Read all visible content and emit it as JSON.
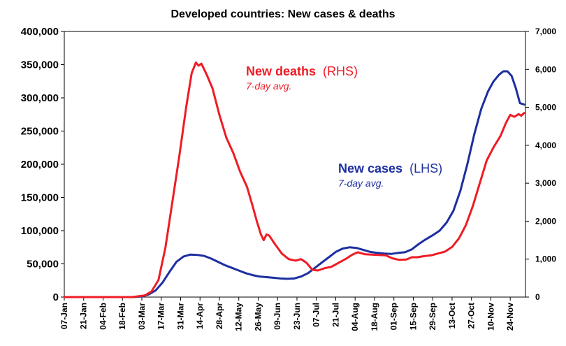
{
  "chart_data": {
    "type": "line",
    "title": "Developed countries: New cases & deaths",
    "left_axis": {
      "ylim": [
        0,
        400000
      ],
      "ticks": [
        "0",
        "50,000",
        "100,000",
        "150,000",
        "200,000",
        "250,000",
        "300,000",
        "350,000",
        "400,000"
      ]
    },
    "right_axis": {
      "ylim": [
        0,
        7000
      ],
      "ticks": [
        "0",
        "1,000",
        "2,000",
        "3,000",
        "4,000",
        "5,000",
        "6,000",
        "7,000"
      ]
    },
    "x_ticks": [
      "07-Jan",
      "21-Jan",
      "04-Feb",
      "18-Feb",
      "03-Mar",
      "17-Mar",
      "31-Mar",
      "14-Apr",
      "28-Apr",
      "12-May",
      "26-May",
      "09-Jun",
      "23-Jun",
      "07-Jul",
      "21-Jul",
      "04-Aug",
      "18-Aug",
      "01-Sep",
      "15-Sep",
      "29-Sep",
      "13-Oct",
      "27-Oct",
      "10-Nov",
      "24-Nov"
    ],
    "x_year": 2020,
    "grid": false,
    "series": [
      {
        "name": "New deaths",
        "axis_label": "(RHS)",
        "note": "7-day avg.",
        "axis": "right",
        "color": "#ee1c25",
        "points": [
          [
            "2020-01-07",
            0
          ],
          [
            "2020-02-25",
            0
          ],
          [
            "2020-03-05",
            40
          ],
          [
            "2020-03-10",
            150
          ],
          [
            "2020-03-15",
            450
          ],
          [
            "2020-03-20",
            1300
          ],
          [
            "2020-03-25",
            2500
          ],
          [
            "2020-03-30",
            3700
          ],
          [
            "2020-04-04",
            5000
          ],
          [
            "2020-04-08",
            5900
          ],
          [
            "2020-04-11",
            6180
          ],
          [
            "2020-04-13",
            6100
          ],
          [
            "2020-04-15",
            6150
          ],
          [
            "2020-04-17",
            6000
          ],
          [
            "2020-04-19",
            5850
          ],
          [
            "2020-04-23",
            5500
          ],
          [
            "2020-04-28",
            4800
          ],
          [
            "2020-05-03",
            4200
          ],
          [
            "2020-05-08",
            3800
          ],
          [
            "2020-05-13",
            3300
          ],
          [
            "2020-05-18",
            2900
          ],
          [
            "2020-05-22",
            2400
          ],
          [
            "2020-05-25",
            2000
          ],
          [
            "2020-05-28",
            1650
          ],
          [
            "2020-05-30",
            1500
          ],
          [
            "2020-06-01",
            1650
          ],
          [
            "2020-06-03",
            1620
          ],
          [
            "2020-06-07",
            1400
          ],
          [
            "2020-06-12",
            1150
          ],
          [
            "2020-06-17",
            1000
          ],
          [
            "2020-06-22",
            960
          ],
          [
            "2020-06-26",
            1000
          ],
          [
            "2020-06-30",
            900
          ],
          [
            "2020-07-04",
            720
          ],
          [
            "2020-07-08",
            700
          ],
          [
            "2020-07-13",
            760
          ],
          [
            "2020-07-18",
            800
          ],
          [
            "2020-07-23",
            900
          ],
          [
            "2020-07-28",
            1000
          ],
          [
            "2020-08-02",
            1120
          ],
          [
            "2020-08-06",
            1180
          ],
          [
            "2020-08-11",
            1130
          ],
          [
            "2020-08-16",
            1120
          ],
          [
            "2020-08-21",
            1110
          ],
          [
            "2020-08-26",
            1100
          ],
          [
            "2020-08-31",
            1020
          ],
          [
            "2020-09-05",
            980
          ],
          [
            "2020-09-10",
            990
          ],
          [
            "2020-09-14",
            1050
          ],
          [
            "2020-09-18",
            1050
          ],
          [
            "2020-09-23",
            1080
          ],
          [
            "2020-09-28",
            1100
          ],
          [
            "2020-10-03",
            1150
          ],
          [
            "2020-10-08",
            1200
          ],
          [
            "2020-10-13",
            1320
          ],
          [
            "2020-10-18",
            1550
          ],
          [
            "2020-10-23",
            1900
          ],
          [
            "2020-10-28",
            2400
          ],
          [
            "2020-11-02",
            3000
          ],
          [
            "2020-11-07",
            3600
          ],
          [
            "2020-11-12",
            3950
          ],
          [
            "2020-11-17",
            4250
          ],
          [
            "2020-11-21",
            4600
          ],
          [
            "2020-11-24",
            4800
          ],
          [
            "2020-11-27",
            4750
          ],
          [
            "2020-11-30",
            4820
          ],
          [
            "2020-12-02",
            4780
          ],
          [
            "2020-12-04",
            4850
          ]
        ]
      },
      {
        "name": "New cases",
        "axis_label": "(LHS)",
        "note": "7-day avg.",
        "axis": "left",
        "color": "#1c2fa0",
        "points": [
          [
            "2020-01-07",
            0
          ],
          [
            "2020-02-25",
            0
          ],
          [
            "2020-03-03",
            1000
          ],
          [
            "2020-03-08",
            4000
          ],
          [
            "2020-03-13",
            10000
          ],
          [
            "2020-03-18",
            22000
          ],
          [
            "2020-03-23",
            38000
          ],
          [
            "2020-03-28",
            53000
          ],
          [
            "2020-04-02",
            61000
          ],
          [
            "2020-04-07",
            64000
          ],
          [
            "2020-04-12",
            63500
          ],
          [
            "2020-04-17",
            62000
          ],
          [
            "2020-04-22",
            58000
          ],
          [
            "2020-04-27",
            53000
          ],
          [
            "2020-05-02",
            48000
          ],
          [
            "2020-05-07",
            44000
          ],
          [
            "2020-05-12",
            40000
          ],
          [
            "2020-05-17",
            36000
          ],
          [
            "2020-05-22",
            33000
          ],
          [
            "2020-05-27",
            31000
          ],
          [
            "2020-06-01",
            30000
          ],
          [
            "2020-06-06",
            29000
          ],
          [
            "2020-06-11",
            28000
          ],
          [
            "2020-06-16",
            27500
          ],
          [
            "2020-06-21",
            28000
          ],
          [
            "2020-06-26",
            31000
          ],
          [
            "2020-07-01",
            36000
          ],
          [
            "2020-07-06",
            44000
          ],
          [
            "2020-07-11",
            52000
          ],
          [
            "2020-07-16",
            60000
          ],
          [
            "2020-07-21",
            68000
          ],
          [
            "2020-07-26",
            73000
          ],
          [
            "2020-07-31",
            75000
          ],
          [
            "2020-08-05",
            74000
          ],
          [
            "2020-08-10",
            71000
          ],
          [
            "2020-08-15",
            68000
          ],
          [
            "2020-08-20",
            66500
          ],
          [
            "2020-08-25",
            65500
          ],
          [
            "2020-08-30",
            65000
          ],
          [
            "2020-09-04",
            66500
          ],
          [
            "2020-09-09",
            67500
          ],
          [
            "2020-09-14",
            72000
          ],
          [
            "2020-09-19",
            80000
          ],
          [
            "2020-09-24",
            87000
          ],
          [
            "2020-09-29",
            93000
          ],
          [
            "2020-10-04",
            100000
          ],
          [
            "2020-10-09",
            112000
          ],
          [
            "2020-10-14",
            130000
          ],
          [
            "2020-10-19",
            160000
          ],
          [
            "2020-10-24",
            200000
          ],
          [
            "2020-10-29",
            245000
          ],
          [
            "2020-11-03",
            283000
          ],
          [
            "2020-11-08",
            310000
          ],
          [
            "2020-11-12",
            325000
          ],
          [
            "2020-11-16",
            335000
          ],
          [
            "2020-11-19",
            340000
          ],
          [
            "2020-11-22",
            340000
          ],
          [
            "2020-11-25",
            333000
          ],
          [
            "2020-11-28",
            315000
          ],
          [
            "2020-12-01",
            292000
          ],
          [
            "2020-12-04",
            290000
          ]
        ]
      }
    ]
  }
}
